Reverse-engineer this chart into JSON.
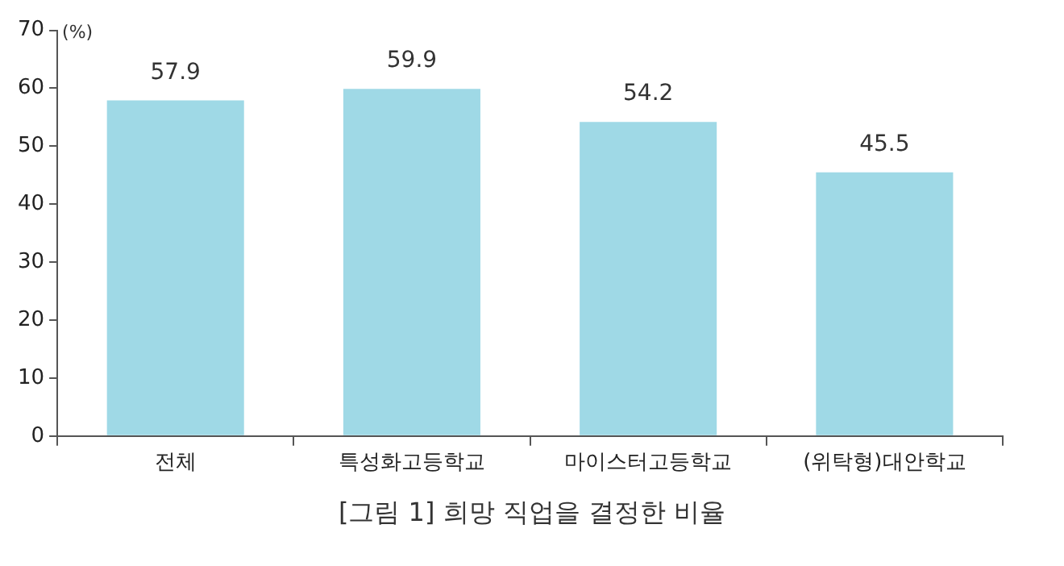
{
  "chart_data": {
    "type": "bar",
    "title": "[그림 1] 희망 직업을 결정한 비율",
    "ylabel": "(%)",
    "categories": [
      "전체",
      "특성화고등학교",
      "마이스터고등학교",
      "(위탁형)대안학교"
    ],
    "values": [
      57.9,
      59.9,
      54.2,
      45.5
    ],
    "color": "#9fd9e6",
    "ylim": [
      0,
      70
    ],
    "yticks": [
      0,
      10,
      20,
      30,
      40,
      50,
      60,
      70
    ],
    "grid": false,
    "data_labels": true
  }
}
